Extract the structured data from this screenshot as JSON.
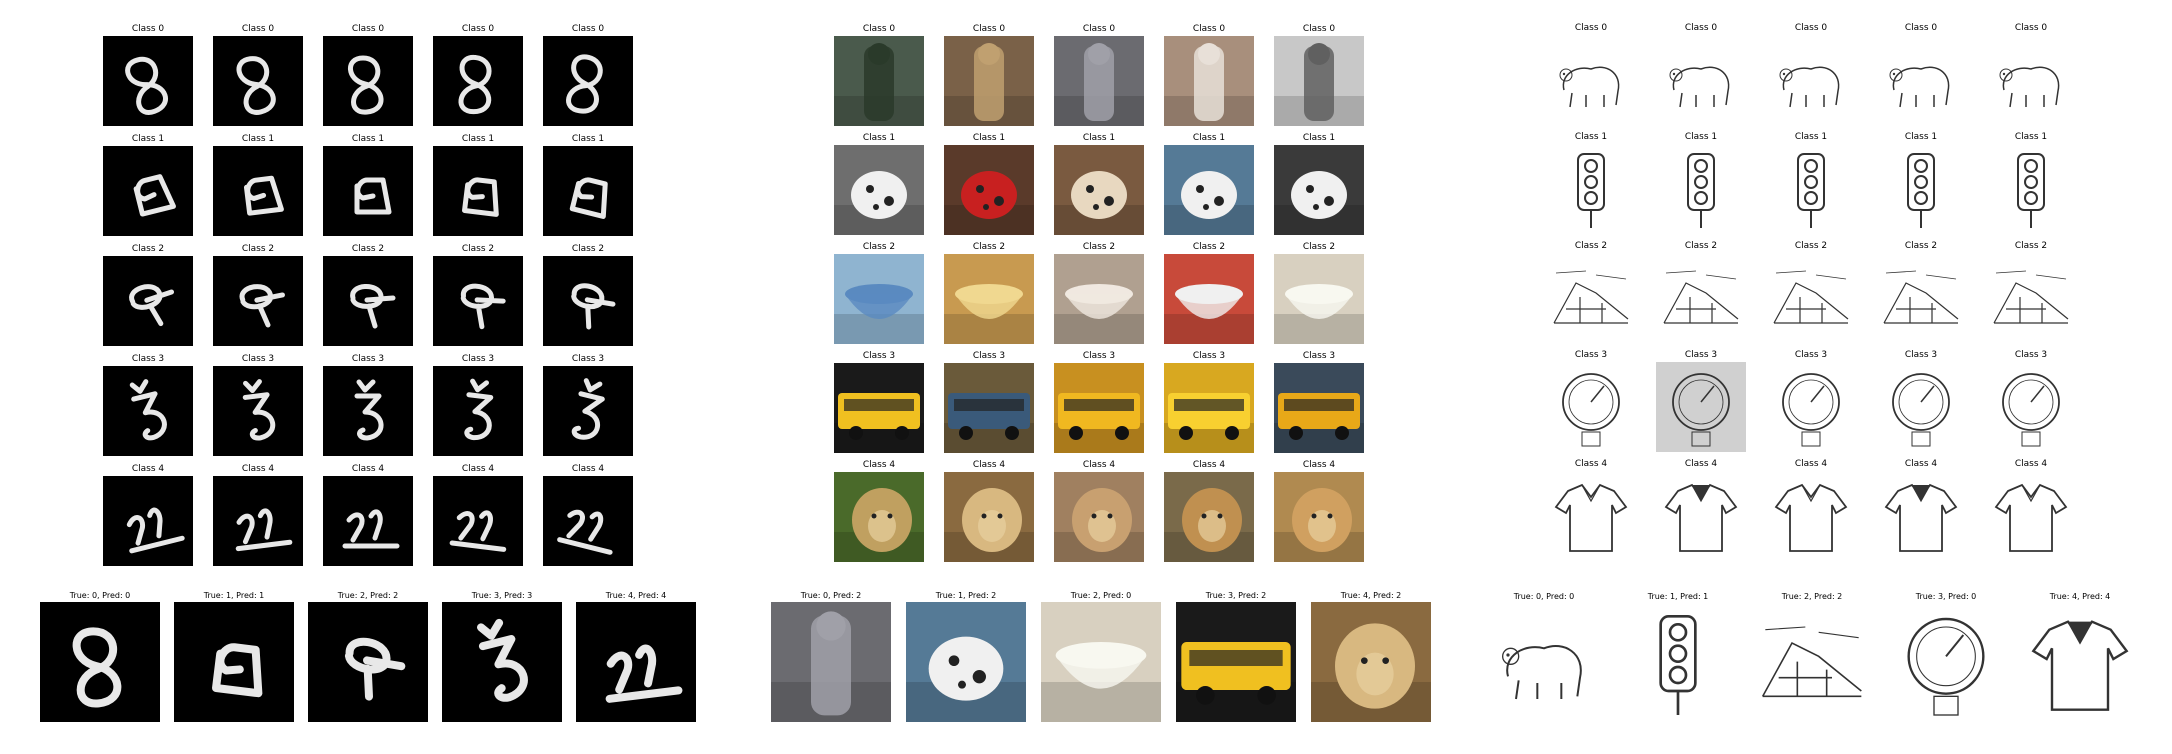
{
  "panels": [
    {
      "name": "omniglot",
      "support": [
        [
          "Class 0",
          "Class 0",
          "Class 0",
          "Class 0",
          "Class 0"
        ],
        [
          "Class 1",
          "Class 1",
          "Class 1",
          "Class 1",
          "Class 1"
        ],
        [
          "Class 2",
          "Class 2",
          "Class 2",
          "Class 2",
          "Class 2"
        ],
        [
          "Class 3",
          "Class 3",
          "Class 3",
          "Class 3",
          "Class 3"
        ],
        [
          "Class 4",
          "Class 4",
          "Class 4",
          "Class 4",
          "Class 4"
        ]
      ],
      "query": [
        "True: 0, Pred: 0",
        "True: 1, Pred: 1",
        "True: 2, Pred: 2",
        "True: 3, Pred: 3",
        "True: 4, Pred: 4"
      ]
    },
    {
      "name": "photos",
      "support": [
        [
          "Class 0",
          "Class 0",
          "Class 0",
          "Class 0",
          "Class 0"
        ],
        [
          "Class 1",
          "Class 1",
          "Class 1",
          "Class 1",
          "Class 1"
        ],
        [
          "Class 2",
          "Class 2",
          "Class 2",
          "Class 2",
          "Class 2"
        ],
        [
          "Class 3",
          "Class 3",
          "Class 3",
          "Class 3",
          "Class 3"
        ],
        [
          "Class 4",
          "Class 4",
          "Class 4",
          "Class 4",
          "Class 4"
        ]
      ],
      "query": [
        "True: 0, Pred: 2",
        "True: 1, Pred: 2",
        "True: 2, Pred: 0",
        "True: 3, Pred: 2",
        "True: 4, Pred: 2"
      ]
    },
    {
      "name": "sketches",
      "support": [
        [
          "Class 0",
          "Class 0",
          "Class 0",
          "Class 0",
          "Class 0"
        ],
        [
          "Class 1",
          "Class 1",
          "Class 1",
          "Class 1",
          "Class 1"
        ],
        [
          "Class 2",
          "Class 2",
          "Class 2",
          "Class 2",
          "Class 2"
        ],
        [
          "Class 3",
          "Class 3",
          "Class 3",
          "Class 3",
          "Class 3"
        ],
        [
          "Class 4",
          "Class 4",
          "Class 4",
          "Class 4",
          "Class 4"
        ]
      ],
      "query": [
        "True: 0, Pred: 0",
        "True: 1, Pred: 1",
        "True: 2, Pred: 2",
        "True: 3, Pred: 0",
        "True: 4, Pred: 4"
      ]
    }
  ],
  "colors": {
    "omniglot_bg": "#000000",
    "omniglot_stroke": "#e8e8e8",
    "sketch_bg": "#ffffff",
    "sketch_stroke": "#333333"
  }
}
